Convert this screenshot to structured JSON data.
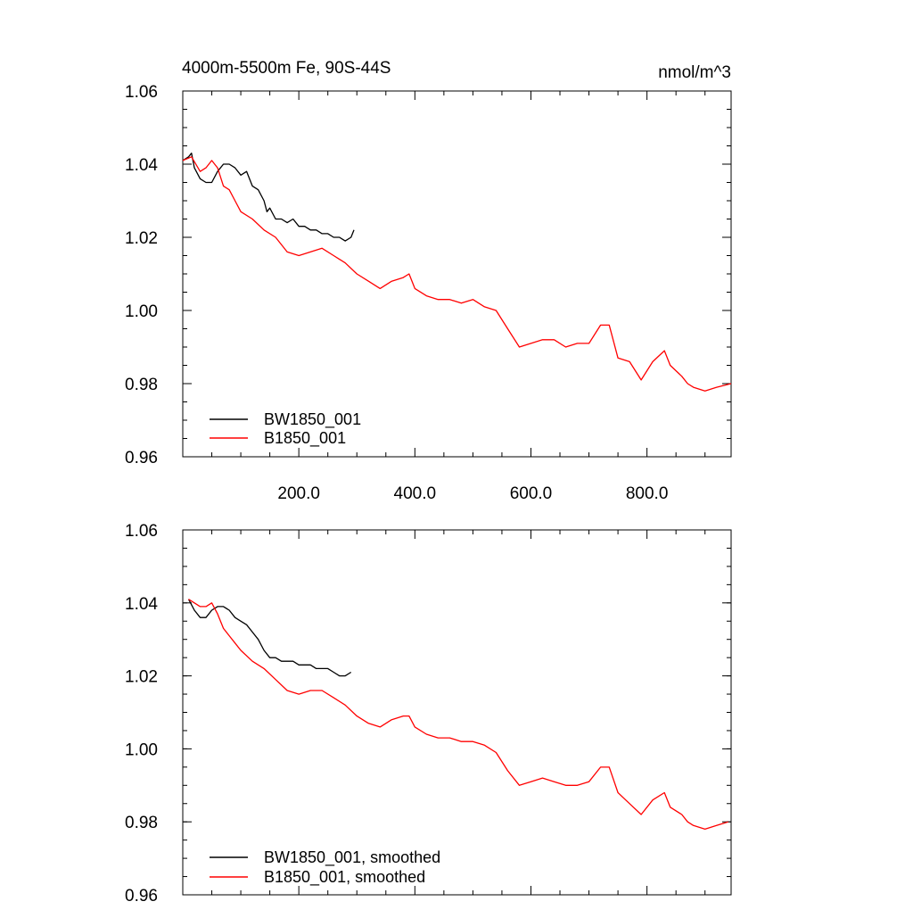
{
  "chart_data": [
    {
      "type": "line",
      "title_left": "4000m-5500m Fe, 90S-44S",
      "title_right": "nmol/m^3",
      "xlim": [
        0,
        945
      ],
      "ylim": [
        0.96,
        1.06
      ],
      "xticks": [
        200,
        400,
        600,
        800
      ],
      "xtick_labels": [
        "200.0",
        "400.0",
        "600.0",
        "800.0"
      ],
      "yticks": [
        0.96,
        0.98,
        1.0,
        1.02,
        1.04,
        1.06
      ],
      "ytick_labels": [
        "0.96",
        "0.98",
        "1.00",
        "1.02",
        "1.04",
        "1.06"
      ],
      "series": [
        {
          "name": "BW1850_001",
          "color": "#000000",
          "x": [
            0,
            10,
            15,
            20,
            30,
            40,
            50,
            60,
            70,
            80,
            90,
            100,
            110,
            120,
            130,
            140,
            145,
            150,
            160,
            170,
            180,
            190,
            200,
            210,
            220,
            230,
            240,
            250,
            260,
            270,
            280,
            290,
            295
          ],
          "y": [
            1.041,
            1.042,
            1.043,
            1.039,
            1.036,
            1.035,
            1.035,
            1.038,
            1.04,
            1.04,
            1.039,
            1.037,
            1.038,
            1.034,
            1.033,
            1.03,
            1.027,
            1.028,
            1.025,
            1.025,
            1.024,
            1.025,
            1.023,
            1.023,
            1.022,
            1.022,
            1.021,
            1.021,
            1.02,
            1.02,
            1.019,
            1.02,
            1.022
          ]
        },
        {
          "name": "B1850_001",
          "color": "#ff0000",
          "x": [
            0,
            15,
            30,
            40,
            50,
            60,
            70,
            80,
            90,
            100,
            120,
            140,
            160,
            180,
            200,
            220,
            240,
            260,
            280,
            300,
            320,
            340,
            360,
            380,
            390,
            400,
            420,
            440,
            460,
            480,
            500,
            520,
            540,
            560,
            580,
            600,
            620,
            640,
            660,
            680,
            700,
            720,
            735,
            750,
            770,
            790,
            810,
            830,
            840,
            860,
            870,
            880,
            900,
            920,
            945
          ],
          "y": [
            1.041,
            1.042,
            1.038,
            1.039,
            1.041,
            1.039,
            1.034,
            1.033,
            1.03,
            1.027,
            1.025,
            1.022,
            1.02,
            1.016,
            1.015,
            1.016,
            1.017,
            1.015,
            1.013,
            1.01,
            1.008,
            1.006,
            1.008,
            1.009,
            1.01,
            1.006,
            1.004,
            1.003,
            1.003,
            1.002,
            1.003,
            1.001,
            1.0,
            0.995,
            0.99,
            0.991,
            0.992,
            0.992,
            0.99,
            0.991,
            0.991,
            0.996,
            0.996,
            0.987,
            0.986,
            0.981,
            0.986,
            0.989,
            0.985,
            0.982,
            0.98,
            0.979,
            0.978,
            0.979,
            0.98
          ]
        }
      ],
      "legend": {
        "placement": "bottom-left",
        "entries": [
          "BW1850_001",
          "B1850_001"
        ]
      }
    },
    {
      "type": "line",
      "xlim": [
        0,
        945
      ],
      "ylim": [
        0.96,
        1.06
      ],
      "xticks": [
        200,
        400,
        600,
        800
      ],
      "yticks": [
        0.96,
        0.98,
        1.0,
        1.02,
        1.04,
        1.06
      ],
      "ytick_labels": [
        "0.96",
        "0.98",
        "1.00",
        "1.02",
        "1.04",
        "1.06"
      ],
      "series": [
        {
          "name": "BW1850_001, smoothed",
          "color": "#000000",
          "x": [
            10,
            20,
            30,
            40,
            50,
            60,
            70,
            80,
            90,
            100,
            110,
            120,
            130,
            140,
            150,
            160,
            170,
            180,
            190,
            200,
            210,
            220,
            230,
            240,
            250,
            260,
            270,
            280,
            290
          ],
          "y": [
            1.041,
            1.038,
            1.036,
            1.036,
            1.038,
            1.039,
            1.039,
            1.038,
            1.036,
            1.035,
            1.034,
            1.032,
            1.03,
            1.027,
            1.025,
            1.025,
            1.024,
            1.024,
            1.024,
            1.023,
            1.023,
            1.023,
            1.022,
            1.022,
            1.022,
            1.021,
            1.02,
            1.02,
            1.021
          ]
        },
        {
          "name": "B1850_001, smoothed",
          "color": "#ff0000",
          "x": [
            10,
            30,
            40,
            50,
            60,
            70,
            80,
            90,
            100,
            120,
            140,
            160,
            180,
            200,
            220,
            240,
            260,
            280,
            300,
            320,
            340,
            360,
            380,
            390,
            400,
            420,
            440,
            460,
            480,
            500,
            520,
            540,
            560,
            580,
            600,
            620,
            640,
            660,
            680,
            700,
            720,
            735,
            750,
            770,
            790,
            810,
            830,
            840,
            860,
            870,
            880,
            900,
            920,
            940
          ],
          "y": [
            1.041,
            1.039,
            1.039,
            1.04,
            1.037,
            1.033,
            1.031,
            1.029,
            1.027,
            1.024,
            1.022,
            1.019,
            1.016,
            1.015,
            1.016,
            1.016,
            1.014,
            1.012,
            1.009,
            1.007,
            1.006,
            1.008,
            1.009,
            1.009,
            1.006,
            1.004,
            1.003,
            1.003,
            1.002,
            1.002,
            1.001,
            0.999,
            0.994,
            0.99,
            0.991,
            0.992,
            0.991,
            0.99,
            0.99,
            0.991,
            0.995,
            0.995,
            0.988,
            0.985,
            0.982,
            0.986,
            0.988,
            0.984,
            0.982,
            0.98,
            0.979,
            0.978,
            0.979,
            0.98
          ]
        }
      ],
      "legend": {
        "placement": "bottom-left",
        "entries": [
          "BW1850_001, smoothed",
          "B1850_001, smoothed"
        ]
      }
    }
  ]
}
